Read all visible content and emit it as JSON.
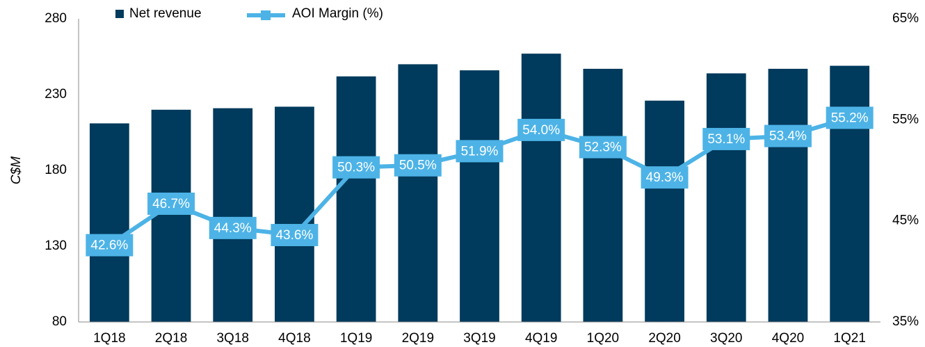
{
  "chart_data": {
    "type": "bar",
    "y_label": "C$M",
    "categories": [
      "1Q18",
      "2Q18",
      "3Q18",
      "4Q18",
      "1Q19",
      "2Q19",
      "3Q19",
      "4Q19",
      "1Q20",
      "2Q20",
      "3Q20",
      "4Q20",
      "1Q21"
    ],
    "series": [
      {
        "name": "Net revenue",
        "type": "bar",
        "color": "#003a5c",
        "values": [
          211,
          220,
          221,
          222,
          242,
          250,
          246,
          257,
          247,
          226,
          244,
          247,
          249
        ]
      },
      {
        "name": "AOI Margin (%)",
        "type": "line",
        "axis": "y2",
        "color": "#4db3e6",
        "values": [
          42.6,
          46.7,
          44.3,
          43.6,
          50.3,
          50.5,
          51.9,
          54.0,
          52.3,
          49.3,
          53.1,
          53.4,
          55.2
        ],
        "value_labels": [
          "42.6%",
          "46.7%",
          "44.3%",
          "43.6%",
          "50.3%",
          "50.5%",
          "51.9%",
          "54.0%",
          "52.3%",
          "49.3%",
          "53.1%",
          "53.4%",
          "55.2%"
        ]
      }
    ],
    "ylim": [
      80,
      280
    ],
    "yticks": [
      80,
      130,
      180,
      230,
      280
    ],
    "y2lim": [
      35,
      65
    ],
    "y2ticks": [
      {
        "value": 35,
        "label": "35%"
      },
      {
        "value": 45,
        "label": "45%"
      },
      {
        "value": 55,
        "label": "55%"
      },
      {
        "value": 65,
        "label": "65%"
      }
    ]
  }
}
